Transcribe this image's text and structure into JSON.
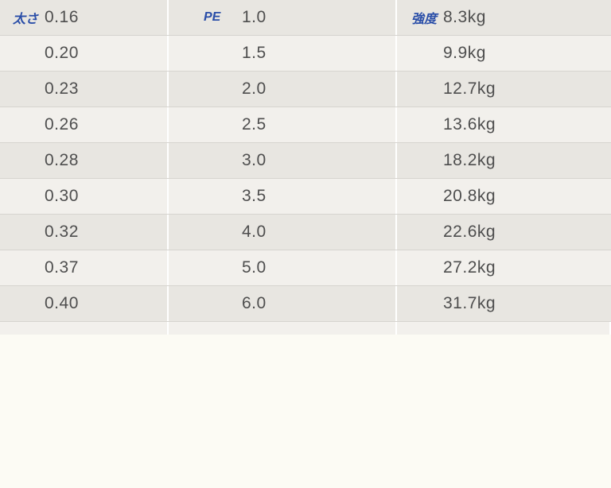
{
  "table": {
    "headers": {
      "thickness": "太さ",
      "pe": "PE",
      "strength": "強度"
    },
    "header_color": "#2a4ea8",
    "value_color": "#4e4e4e",
    "row_even_bg": "#e8e6e1",
    "row_odd_bg": "#f2f0ec",
    "row_border_color": "#d6d4cf",
    "rows": [
      {
        "thickness": "0.16",
        "pe": "1.0",
        "strength": "8.3kg"
      },
      {
        "thickness": "0.20",
        "pe": "1.5",
        "strength": "9.9kg"
      },
      {
        "thickness": "0.23",
        "pe": "2.0",
        "strength": "12.7kg"
      },
      {
        "thickness": "0.26",
        "pe": "2.5",
        "strength": "13.6kg"
      },
      {
        "thickness": "0.28",
        "pe": "3.0",
        "strength": "18.2kg"
      },
      {
        "thickness": "0.30",
        "pe": "3.5",
        "strength": "20.8kg"
      },
      {
        "thickness": "0.32",
        "pe": "4.0",
        "strength": "22.6kg"
      },
      {
        "thickness": "0.37",
        "pe": "5.0",
        "strength": "27.2kg"
      },
      {
        "thickness": "0.40",
        "pe": "6.0",
        "strength": "31.7kg"
      }
    ]
  }
}
